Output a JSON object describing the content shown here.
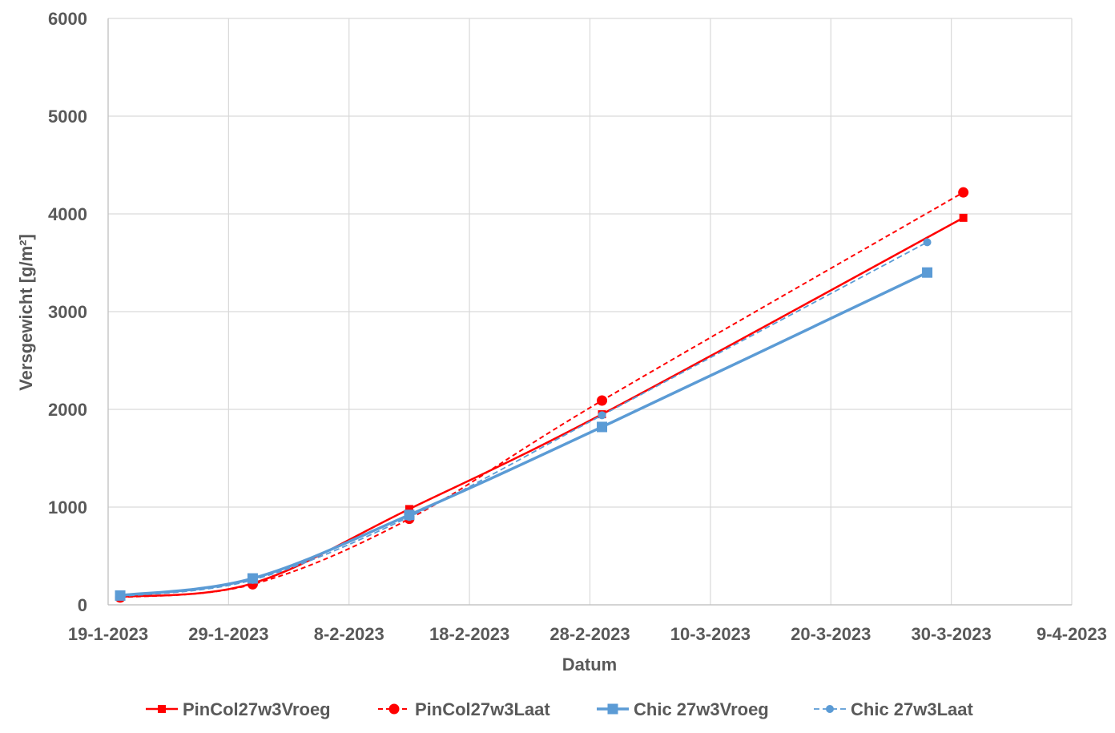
{
  "chart_data": {
    "type": "line",
    "title": "",
    "xlabel": "Datum",
    "ylabel": "Versgewicht [g/m²]",
    "x_tick_labels": [
      "19-1-2023",
      "29-1-2023",
      "8-2-2023",
      "18-2-2023",
      "28-2-2023",
      "10-3-2023",
      "20-3-2023",
      "30-3-2023",
      "9-4-2023"
    ],
    "y_tick_labels": [
      "0",
      "1000",
      "2000",
      "3000",
      "4000",
      "5000",
      "6000"
    ],
    "xlim": [
      "2023-01-19",
      "2023-04-09"
    ],
    "ylim": [
      0,
      6000
    ],
    "grid": true,
    "legend_position": "bottom",
    "series": [
      {
        "name": "PinCol27w3Vroeg",
        "color": "#ff0000",
        "dash": "solid",
        "marker": "square",
        "points": [
          {
            "x": "2023-01-20",
            "y": 80
          },
          {
            "x": "2023-01-31",
            "y": 220
          },
          {
            "x": "2023-02-13",
            "y": 980
          },
          {
            "x": "2023-03-01",
            "y": 1950
          },
          {
            "x": "2023-03-31",
            "y": 3960
          }
        ]
      },
      {
        "name": "PinCol27w3Laat",
        "color": "#ff0000",
        "dash": "dashed",
        "marker": "circle",
        "points": [
          {
            "x": "2023-01-20",
            "y": 75
          },
          {
            "x": "2023-01-31",
            "y": 210
          },
          {
            "x": "2023-02-13",
            "y": 880
          },
          {
            "x": "2023-03-01",
            "y": 2090
          },
          {
            "x": "2023-03-31",
            "y": 4220
          }
        ]
      },
      {
        "name": "Chic 27w3Vroeg",
        "color": "#5b9bd5",
        "dash": "solid",
        "marker": "square",
        "points": [
          {
            "x": "2023-01-20",
            "y": 95
          },
          {
            "x": "2023-01-31",
            "y": 270
          },
          {
            "x": "2023-02-13",
            "y": 920
          },
          {
            "x": "2023-03-01",
            "y": 1820
          },
          {
            "x": "2023-03-28",
            "y": 3400
          }
        ]
      },
      {
        "name": "Chic 27w3Laat",
        "color": "#5b9bd5",
        "dash": "dashed",
        "marker": "circle",
        "points": [
          {
            "x": "2023-01-20",
            "y": 85
          },
          {
            "x": "2023-01-31",
            "y": 255
          },
          {
            "x": "2023-02-13",
            "y": 900
          },
          {
            "x": "2023-03-01",
            "y": 1940
          },
          {
            "x": "2023-03-28",
            "y": 3710
          }
        ]
      }
    ]
  }
}
